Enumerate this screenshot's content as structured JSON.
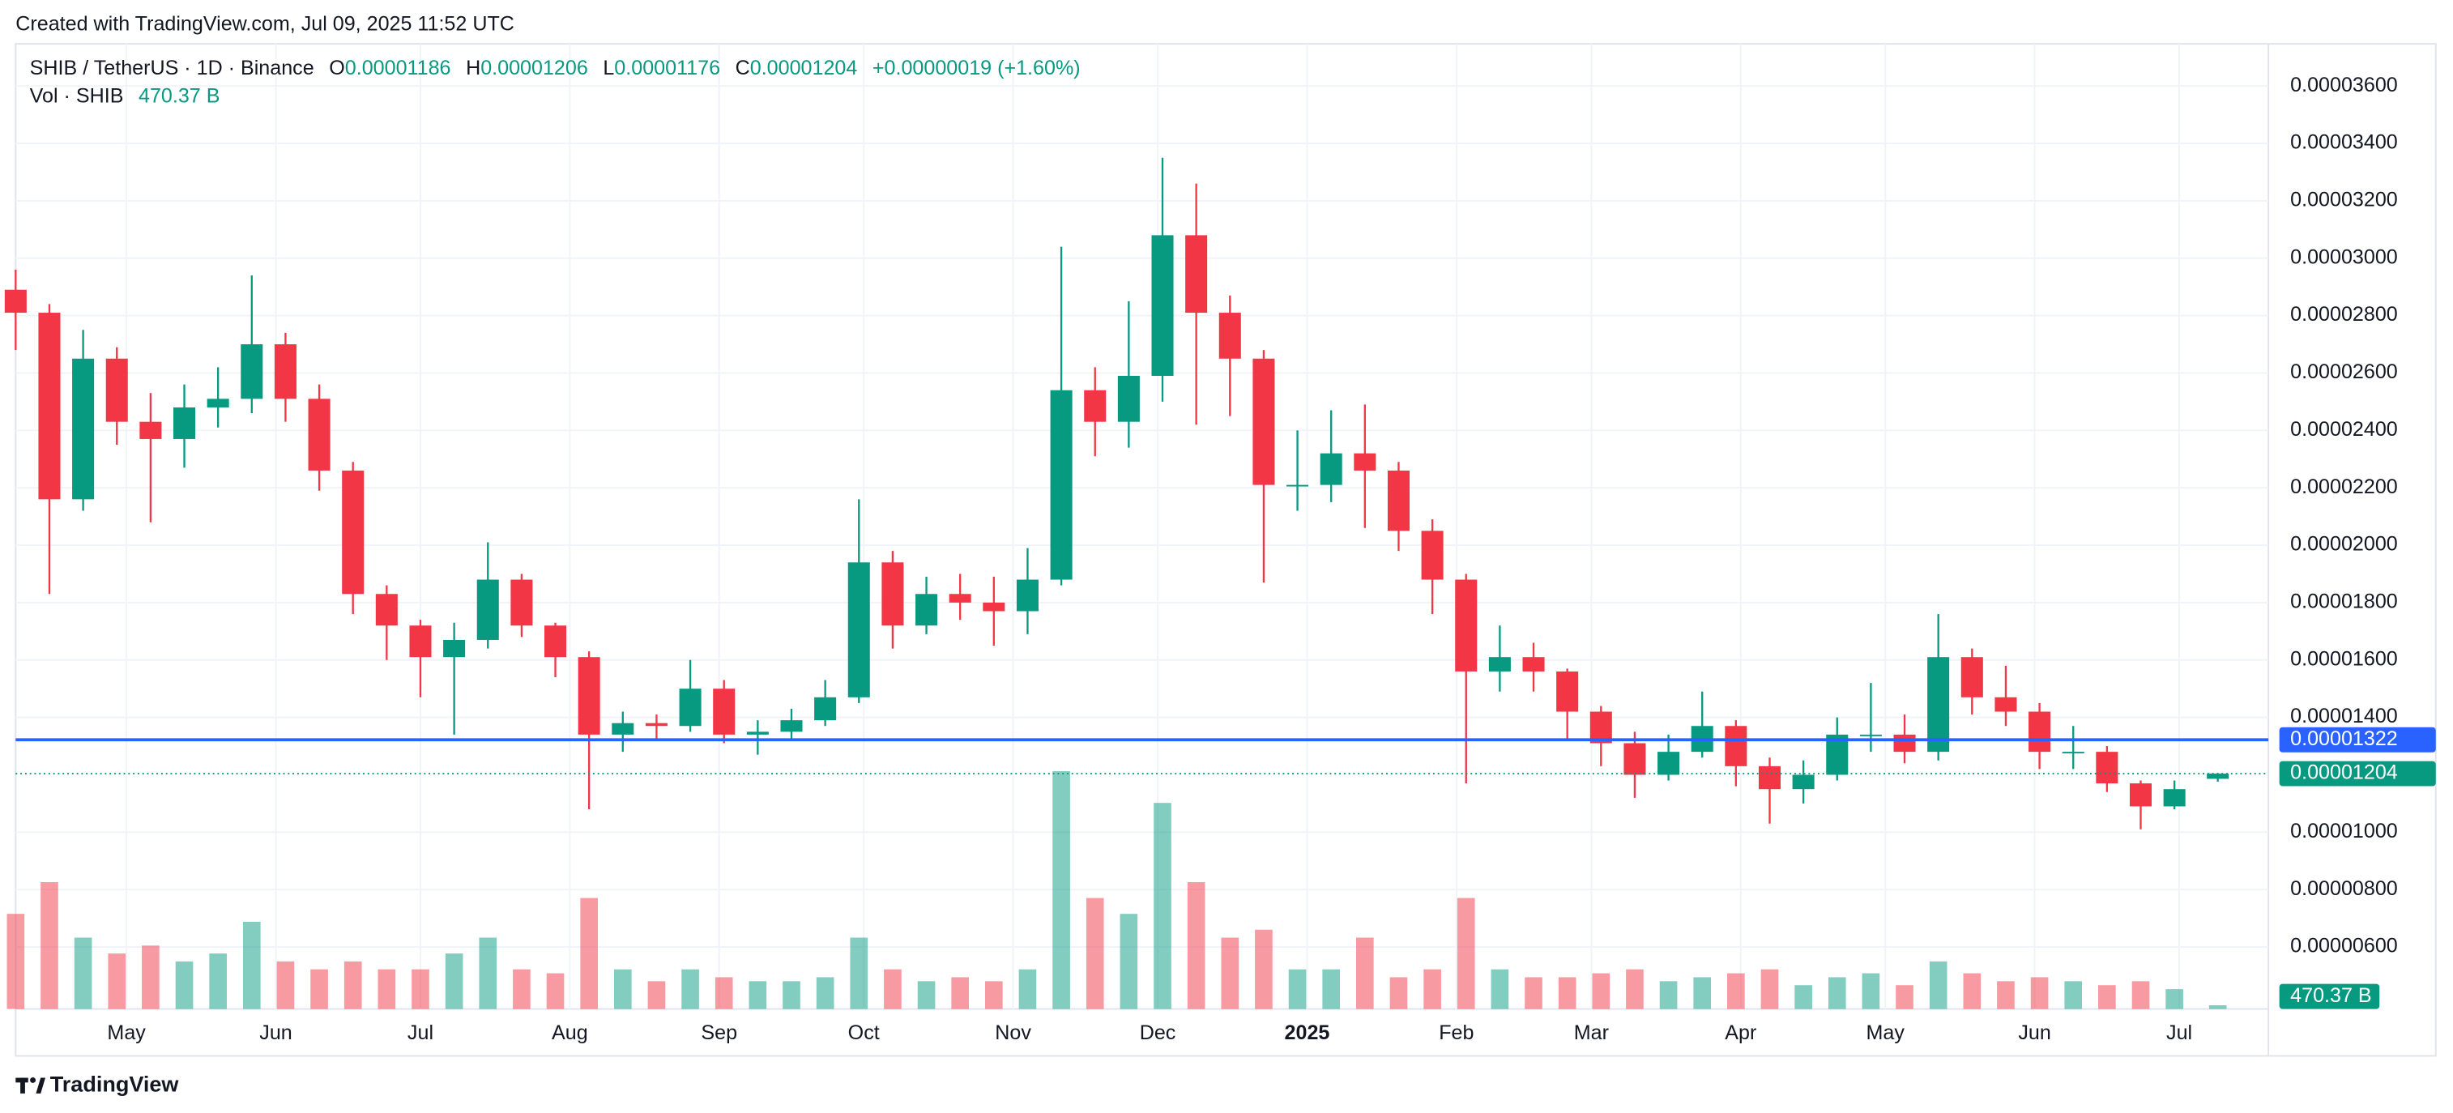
{
  "header": {
    "caption": "Created with TradingView.com, Jul 09, 2025 11:52 UTC"
  },
  "chart_data": {
    "type": "candlestick",
    "symbol": "SHIB / TetherUS · 1D · Binance",
    "legend": [
      {
        "key": "O",
        "value": "0.00001186"
      },
      {
        "key": "H",
        "value": "0.00001206"
      },
      {
        "key": "L",
        "value": "0.00001176"
      },
      {
        "key": "C",
        "value": "0.00001204"
      }
    ],
    "change": "+0.00000019 (+1.60%)",
    "volume_legend": {
      "label": "Vol · SHIB",
      "value": "470.37 B"
    },
    "up_color": "#089981",
    "down_color": "#f23645",
    "x": [
      0,
      7,
      14,
      21,
      28,
      35,
      42,
      49,
      56,
      63,
      70,
      77,
      84,
      91,
      98,
      105,
      112,
      119,
      126,
      133,
      140,
      147,
      154,
      161,
      168,
      175,
      182,
      189,
      196,
      203,
      210,
      217,
      224,
      231,
      238,
      245,
      252,
      259,
      266,
      273,
      280,
      287,
      294,
      301,
      308,
      315,
      322,
      329,
      336,
      343,
      350,
      357,
      364,
      371,
      378,
      385,
      392,
      399,
      406,
      413,
      420,
      427,
      434,
      441,
      448,
      457
    ],
    "open": [
      2.89e-05,
      2.81e-05,
      2.16e-05,
      2.65e-05,
      2.43e-05,
      2.37e-05,
      2.48e-05,
      2.51e-05,
      2.7e-05,
      2.51e-05,
      2.26e-05,
      1.83e-05,
      1.72e-05,
      1.61e-05,
      1.67e-05,
      1.88e-05,
      1.72e-05,
      1.61e-05,
      1.34e-05,
      1.38e-05,
      1.37e-05,
      1.5e-05,
      1.34e-05,
      1.35e-05,
      1.39e-05,
      1.47e-05,
      1.94e-05,
      1.72e-05,
      1.83e-05,
      1.8e-05,
      1.77e-05,
      1.88e-05,
      2.54e-05,
      2.43e-05,
      2.59e-05,
      3.08e-05,
      2.81e-05,
      2.65e-05,
      2.21e-05,
      2.21e-05,
      2.32e-05,
      2.26e-05,
      2.05e-05,
      1.88e-05,
      1.56e-05,
      1.61e-05,
      1.56e-05,
      1.42e-05,
      1.31e-05,
      1.2e-05,
      1.28e-05,
      1.37e-05,
      1.23e-05,
      1.15e-05,
      1.2e-05,
      1.34e-05,
      1.34e-05,
      1.28e-05,
      1.61e-05,
      1.47e-05,
      1.42e-05,
      1.28e-05,
      1.28e-05,
      1.17e-05,
      1.09e-05,
      1.186e-05
    ],
    "high": [
      2.96e-05,
      2.84e-05,
      2.75e-05,
      2.69e-05,
      2.53e-05,
      2.56e-05,
      2.62e-05,
      2.94e-05,
      2.74e-05,
      2.56e-05,
      2.29e-05,
      1.86e-05,
      1.74e-05,
      1.73e-05,
      2.01e-05,
      1.9e-05,
      1.73e-05,
      1.63e-05,
      1.42e-05,
      1.41e-05,
      1.6e-05,
      1.53e-05,
      1.39e-05,
      1.43e-05,
      1.53e-05,
      2.16e-05,
      1.98e-05,
      1.89e-05,
      1.9e-05,
      1.89e-05,
      1.99e-05,
      3.04e-05,
      2.62e-05,
      2.85e-05,
      3.35e-05,
      3.26e-05,
      2.87e-05,
      2.68e-05,
      2.4e-05,
      2.47e-05,
      2.49e-05,
      2.29e-05,
      2.09e-05,
      1.9e-05,
      1.72e-05,
      1.66e-05,
      1.57e-05,
      1.44e-05,
      1.35e-05,
      1.34e-05,
      1.49e-05,
      1.39e-05,
      1.26e-05,
      1.25e-05,
      1.4e-05,
      1.52e-05,
      1.41e-05,
      1.76e-05,
      1.64e-05,
      1.58e-05,
      1.45e-05,
      1.37e-05,
      1.3e-05,
      1.18e-05,
      1.18e-05,
      1.206e-05
    ],
    "low": [
      2.68e-05,
      1.83e-05,
      2.12e-05,
      2.35e-05,
      2.08e-05,
      2.27e-05,
      2.41e-05,
      2.46e-05,
      2.43e-05,
      2.19e-05,
      1.76e-05,
      1.6e-05,
      1.47e-05,
      1.34e-05,
      1.64e-05,
      1.68e-05,
      1.54e-05,
      1.08e-05,
      1.28e-05,
      1.32e-05,
      1.35e-05,
      1.31e-05,
      1.27e-05,
      1.32e-05,
      1.37e-05,
      1.45e-05,
      1.64e-05,
      1.69e-05,
      1.74e-05,
      1.65e-05,
      1.69e-05,
      1.86e-05,
      2.31e-05,
      2.34e-05,
      2.5e-05,
      2.42e-05,
      2.45e-05,
      1.87e-05,
      2.12e-05,
      2.15e-05,
      2.06e-05,
      1.98e-05,
      1.76e-05,
      1.17e-05,
      1.49e-05,
      1.49e-05,
      1.32e-05,
      1.23e-05,
      1.12e-05,
      1.18e-05,
      1.26e-05,
      1.16e-05,
      1.03e-05,
      1.1e-05,
      1.18e-05,
      1.28e-05,
      1.24e-05,
      1.25e-05,
      1.41e-05,
      1.37e-05,
      1.22e-05,
      1.22e-05,
      1.14e-05,
      1.01e-05,
      1.08e-05,
      1.176e-05
    ],
    "close": [
      2.81e-05,
      2.16e-05,
      2.65e-05,
      2.43e-05,
      2.37e-05,
      2.48e-05,
      2.51e-05,
      2.7e-05,
      2.51e-05,
      2.26e-05,
      1.83e-05,
      1.72e-05,
      1.61e-05,
      1.67e-05,
      1.88e-05,
      1.72e-05,
      1.61e-05,
      1.34e-05,
      1.38e-05,
      1.37e-05,
      1.5e-05,
      1.34e-05,
      1.35e-05,
      1.39e-05,
      1.47e-05,
      1.94e-05,
      1.72e-05,
      1.83e-05,
      1.8e-05,
      1.77e-05,
      1.88e-05,
      2.54e-05,
      2.43e-05,
      2.59e-05,
      3.08e-05,
      2.81e-05,
      2.65e-05,
      2.21e-05,
      2.21e-05,
      2.32e-05,
      2.26e-05,
      2.05e-05,
      1.88e-05,
      1.56e-05,
      1.61e-05,
      1.56e-05,
      1.42e-05,
      1.31e-05,
      1.2e-05,
      1.28e-05,
      1.37e-05,
      1.23e-05,
      1.15e-05,
      1.2e-05,
      1.34e-05,
      1.34e-05,
      1.28e-05,
      1.61e-05,
      1.47e-05,
      1.42e-05,
      1.28e-05,
      1.28e-05,
      1.17e-05,
      1.09e-05,
      1.15e-05,
      1.204e-05
    ],
    "volume": [
      12000,
      16000,
      9000,
      7000,
      8000,
      6000,
      7000,
      11000,
      6000,
      5000,
      6000,
      5000,
      5000,
      7000,
      9000,
      5000,
      4500,
      14000,
      5000,
      3500,
      5000,
      4000,
      3500,
      3500,
      4000,
      9000,
      5000,
      3500,
      4000,
      3500,
      5000,
      30000,
      14000,
      12000,
      26000,
      16000,
      9000,
      10000,
      5000,
      5000,
      9000,
      4000,
      5000,
      14000,
      5000,
      4000,
      4000,
      4500,
      5000,
      3500,
      4000,
      4500,
      5000,
      3000,
      4000,
      4500,
      3000,
      6000,
      4500,
      3500,
      4000,
      3500,
      3000,
      3500,
      2500,
      470.37
    ],
    "xlim": [
      -3.25,
      467.5
    ],
    "xticks": [
      {
        "value": 23,
        "label": "May"
      },
      {
        "value": 54,
        "label": "Jun"
      },
      {
        "value": 84,
        "label": "Jul"
      },
      {
        "value": 115,
        "label": "Aug"
      },
      {
        "value": 146,
        "label": "Sep"
      },
      {
        "value": 176,
        "label": "Oct"
      },
      {
        "value": 207,
        "label": "Nov"
      },
      {
        "value": 237,
        "label": "Dec"
      },
      {
        "value": 268,
        "label": "2025"
      },
      {
        "value": 299,
        "label": "Feb"
      },
      {
        "value": 327,
        "label": "Mar"
      },
      {
        "value": 358,
        "label": "Apr"
      },
      {
        "value": 388,
        "label": "May"
      },
      {
        "value": 419,
        "label": "Jun"
      },
      {
        "value": 449,
        "label": "Jul"
      }
    ],
    "ylim": [
      3.84e-06,
      3.747e-05
    ],
    "yticks": [
      {
        "value": 6e-06,
        "label": "0.00000600"
      },
      {
        "value": 8e-06,
        "label": "0.00000800"
      },
      {
        "value": 1e-05,
        "label": "0.00001000"
      },
      {
        "value": 1.4e-05,
        "label": "0.00001400"
      },
      {
        "value": 1.6e-05,
        "label": "0.00001600"
      },
      {
        "value": 1.8e-05,
        "label": "0.00001800"
      },
      {
        "value": 2e-05,
        "label": "0.00002000"
      },
      {
        "value": 2.2e-05,
        "label": "0.00002200"
      },
      {
        "value": 2.4e-05,
        "label": "0.00002400"
      },
      {
        "value": 2.6e-05,
        "label": "0.00002600"
      },
      {
        "value": 2.8e-05,
        "label": "0.00002800"
      },
      {
        "value": 3e-05,
        "label": "0.00003000"
      },
      {
        "value": 3.2e-05,
        "label": "0.00003200"
      },
      {
        "value": 3.4e-05,
        "label": "0.00003400"
      },
      {
        "value": 3.6e-05,
        "label": "0.00003600"
      }
    ],
    "grid": true,
    "lines": [
      {
        "value": 1.322e-05,
        "label": "0.00001322",
        "color": "#2962ff"
      }
    ],
    "last_price": {
      "value": 1.204e-05,
      "label": "0.00001204",
      "color": "#089981"
    }
  },
  "footer": {
    "brand": "TradingView"
  }
}
